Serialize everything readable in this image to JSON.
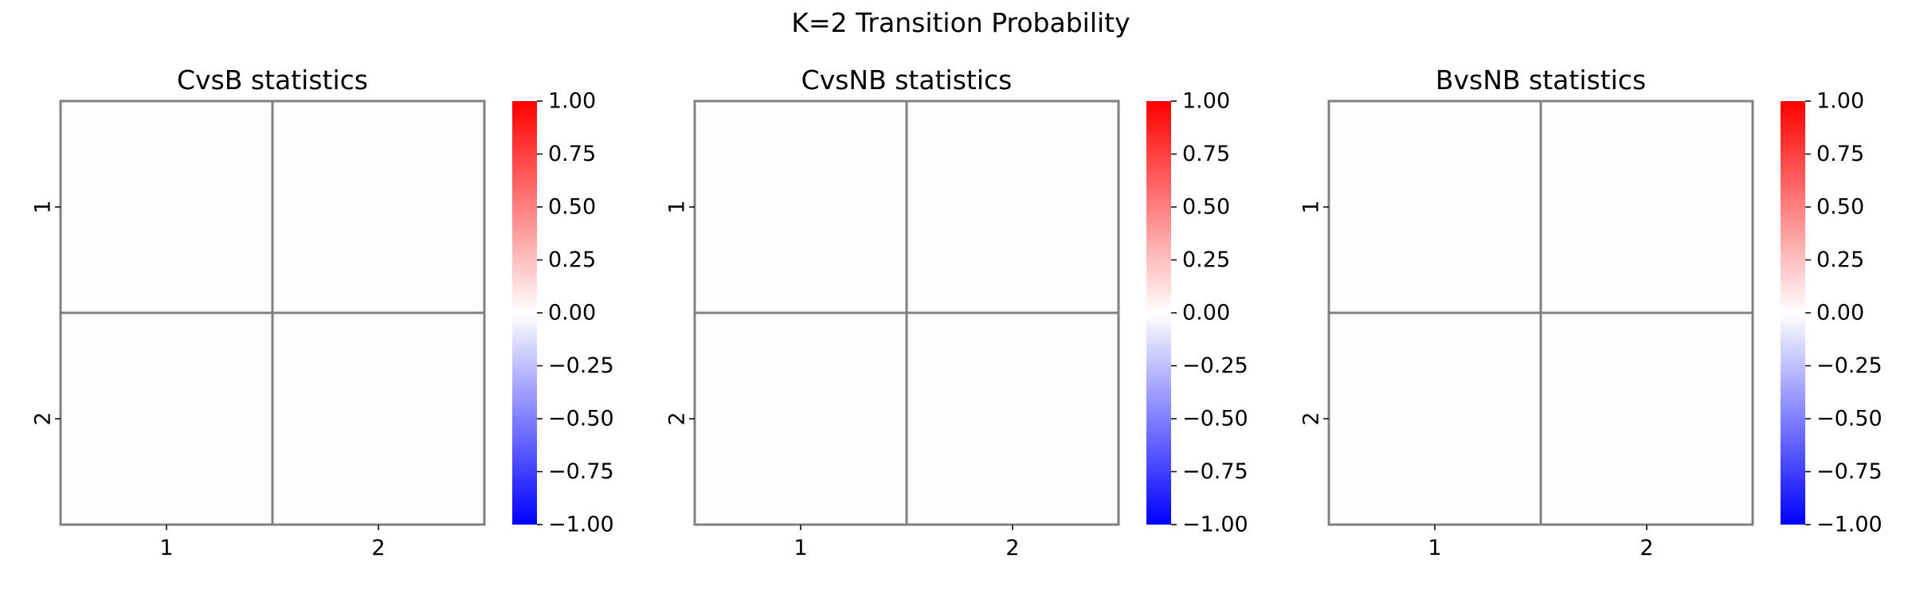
{
  "figure": {
    "suptitle": "K=2 Transition Probability"
  },
  "chart_data": [
    {
      "type": "heatmap",
      "title": "CvsB statistics",
      "x_ticks": [
        "1",
        "2"
      ],
      "y_ticks": [
        "1",
        "2"
      ],
      "values": [
        [
          0,
          0
        ],
        [
          0,
          0
        ]
      ],
      "colormap": "bwr",
      "vmin": -1.0,
      "vmax": 1.0,
      "colorbar_ticks": [
        "1.00",
        "0.75",
        "0.50",
        "0.25",
        "0.00",
        "−0.25",
        "−0.50",
        "−0.75",
        "−1.00"
      ],
      "cell_border_color": "#808080"
    },
    {
      "type": "heatmap",
      "title": "CvsNB statistics",
      "x_ticks": [
        "1",
        "2"
      ],
      "y_ticks": [
        "1",
        "2"
      ],
      "values": [
        [
          0,
          0
        ],
        [
          0,
          0
        ]
      ],
      "colormap": "bwr",
      "vmin": -1.0,
      "vmax": 1.0,
      "colorbar_ticks": [
        "1.00",
        "0.75",
        "0.50",
        "0.25",
        "0.00",
        "−0.25",
        "−0.50",
        "−0.75",
        "−1.00"
      ],
      "cell_border_color": "#808080"
    },
    {
      "type": "heatmap",
      "title": "BvsNB statistics",
      "x_ticks": [
        "1",
        "2"
      ],
      "y_ticks": [
        "1",
        "2"
      ],
      "values": [
        [
          0,
          0
        ],
        [
          0,
          0
        ]
      ],
      "colormap": "bwr",
      "vmin": -1.0,
      "vmax": 1.0,
      "colorbar_ticks": [
        "1.00",
        "0.75",
        "0.50",
        "0.25",
        "0.00",
        "−0.25",
        "−0.50",
        "−0.75",
        "−1.00"
      ],
      "cell_border_color": "#808080"
    }
  ]
}
